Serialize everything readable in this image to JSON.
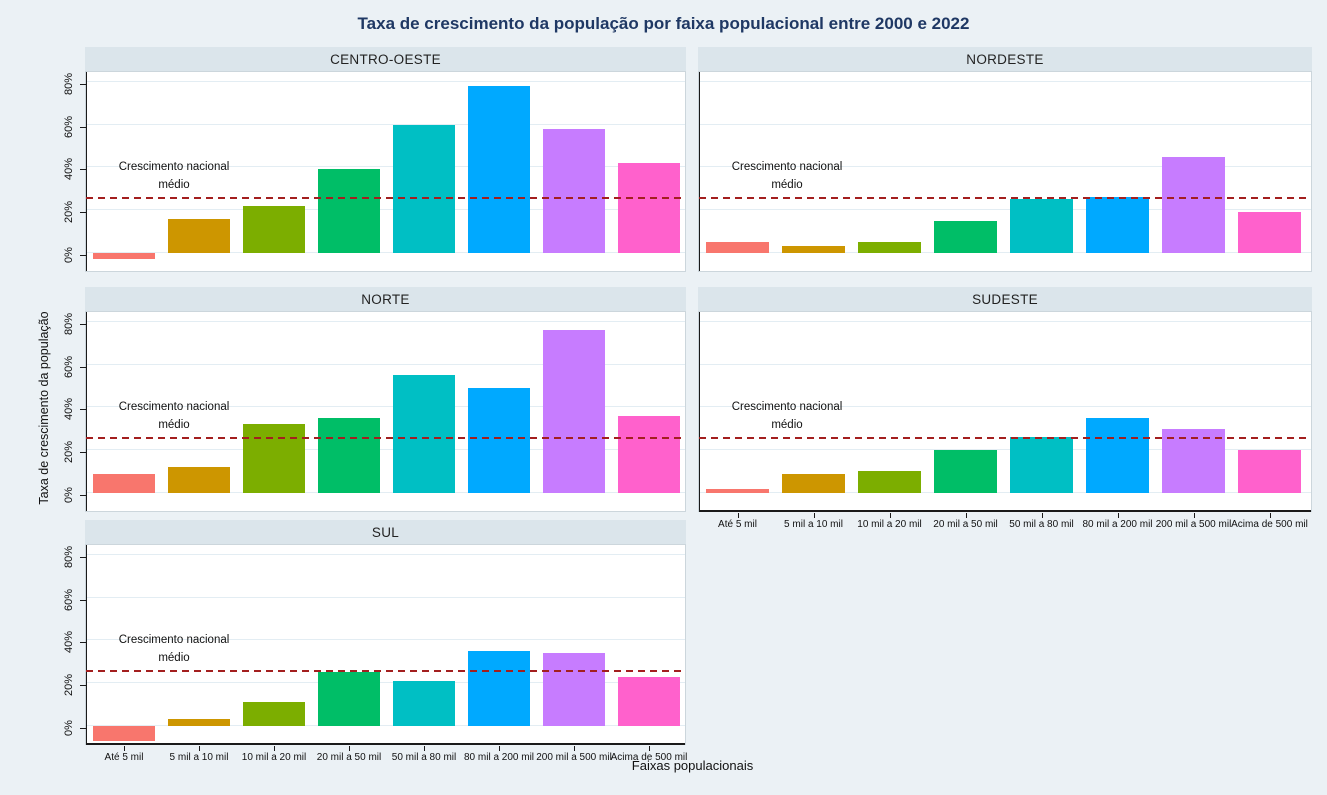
{
  "title": "Taxa de crescimento da população por faixa populacional entre 2000 e 2022",
  "annotation": {
    "line1": "Crescimento nacional",
    "line2": "médio"
  },
  "colors": {
    "title": "#1f3864",
    "background": "#ebf1f5",
    "strip_background": "#dbe5eb",
    "plot_background": "#ffffff",
    "gridline": "#e3edf3",
    "reference_line": "#a31f1f",
    "bar_palette": [
      "#F8766D",
      "#CD9600",
      "#7CAE00",
      "#00BE67",
      "#00BFC4",
      "#00A9FF",
      "#C77CFF",
      "#FF61CC"
    ]
  },
  "chart_data": {
    "type": "bar",
    "title": "Taxa de crescimento da população por faixa populacional entre 2000 e 2022",
    "xlabel": "Faixas populacionais",
    "ylabel": "Taxa de crescimento da população",
    "categories": [
      "Até 5 mil",
      "5 mil a 10 mil",
      "10 mil a 20 mil",
      "20 mil a 50 mil",
      "50 mil a 80 mil",
      "80 mil a 200 mil",
      "200 mil a 500 mil",
      "Acima de 500 mil"
    ],
    "y_ticks": [
      "0%",
      "20%",
      "40%",
      "60%",
      "80%"
    ],
    "y_tick_values": [
      0,
      20,
      40,
      60,
      80
    ],
    "ylim": [
      -8.5,
      85.5
    ],
    "grid": true,
    "legend": "none",
    "facet_layout": "2 columns x 3 rows, facets: CENTRO-OESTE, NORDESTE, NORTE, SUDESTE, SUL",
    "unit": "percent growth 2000-2022",
    "reference_line": {
      "value": 25,
      "label": "Crescimento nacional médio",
      "style": "dashed dark red"
    },
    "series": [
      {
        "name": "CENTRO-OESTE",
        "values": [
          -3,
          16,
          22,
          39,
          60,
          78,
          58,
          42
        ]
      },
      {
        "name": "NORDESTE",
        "values": [
          5,
          3,
          5,
          15,
          25,
          26,
          45,
          19
        ]
      },
      {
        "name": "NORTE",
        "values": [
          9,
          12,
          32,
          35,
          55,
          49,
          76,
          36
        ]
      },
      {
        "name": "SUDESTE",
        "values": [
          2,
          9,
          10,
          20,
          26,
          35,
          30,
          20
        ]
      },
      {
        "name": "SUL",
        "values": [
          -7,
          3,
          11,
          25,
          21,
          35,
          34,
          23
        ]
      }
    ]
  }
}
